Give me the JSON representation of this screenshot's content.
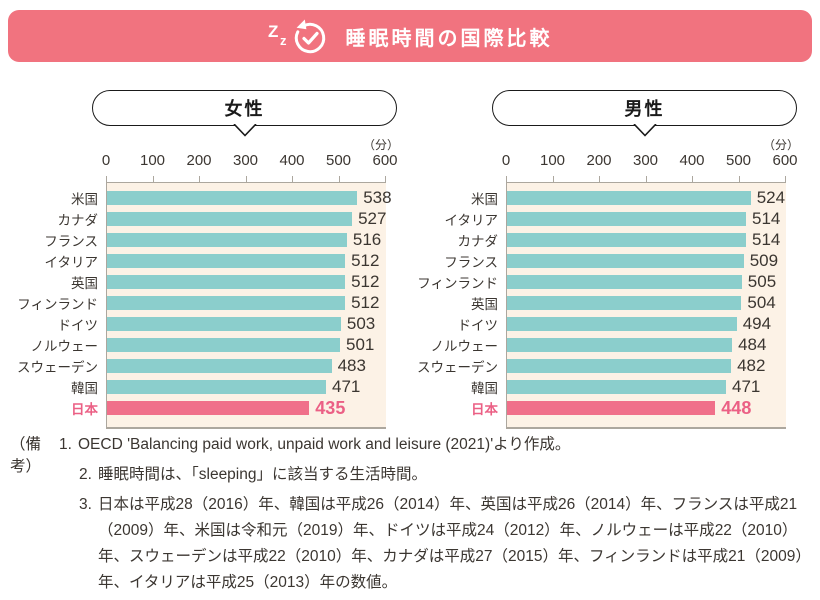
{
  "header": {
    "title": "睡眠時間の国際比較",
    "icon": "zz-clock-icon"
  },
  "axis": {
    "unit_label": "（分）",
    "ticks": [
      0,
      100,
      200,
      300,
      400,
      500,
      600
    ],
    "max": 600
  },
  "chart_data": [
    {
      "type": "bar",
      "orientation": "horizontal",
      "title": "女性",
      "categories": [
        "米国",
        "カナダ",
        "フランス",
        "イタリア",
        "英国",
        "フィンランド",
        "ドイツ",
        "ノルウェー",
        "スウェーデン",
        "韓国",
        "日本"
      ],
      "values": [
        538,
        527,
        516,
        512,
        512,
        512,
        503,
        501,
        483,
        471,
        435
      ],
      "highlight_category": "日本",
      "xlabel": "分",
      "xlim": [
        0,
        600
      ],
      "grid": false,
      "legend": "none"
    },
    {
      "type": "bar",
      "orientation": "horizontal",
      "title": "男性",
      "categories": [
        "米国",
        "イタリア",
        "カナダ",
        "フランス",
        "フィンランド",
        "英国",
        "ドイツ",
        "ノルウェー",
        "スウェーデン",
        "韓国",
        "日本"
      ],
      "values": [
        524,
        514,
        514,
        509,
        505,
        504,
        494,
        484,
        482,
        471,
        448
      ],
      "highlight_category": "日本",
      "xlabel": "分",
      "xlim": [
        0,
        600
      ],
      "grid": false,
      "legend": "none"
    }
  ],
  "colors": {
    "header_bg": "#F1737F",
    "bar": "#8BCECC",
    "highlight_bar": "#F0708A",
    "highlight_text": "#EB6085",
    "plot_bg": "#FCF2E6",
    "line": "#ACA79E",
    "text": "#3B3631"
  },
  "notes": {
    "prefix": "（備考）",
    "items": [
      {
        "num": "1.",
        "text": "OECD 'Balancing paid work, unpaid work and leisure (2021)'より作成。"
      },
      {
        "num": "2.",
        "text": "睡眠時間は、「sleeping」に該当する生活時間。"
      },
      {
        "num": "3.",
        "text": "日本は平成28（2016）年、韓国は平成26（2014）年、英国は平成26（2014）年、フランスは平成21（2009）年、米国は令和元（2019）年、ドイツは平成24（2012）年、ノルウェーは平成22（2010）年、スウェーデンは平成22（2010）年、カナダは平成27（2015）年、フィンランドは平成21（2009）年、イタリアは平成25（2013）年の数値。"
      }
    ]
  }
}
